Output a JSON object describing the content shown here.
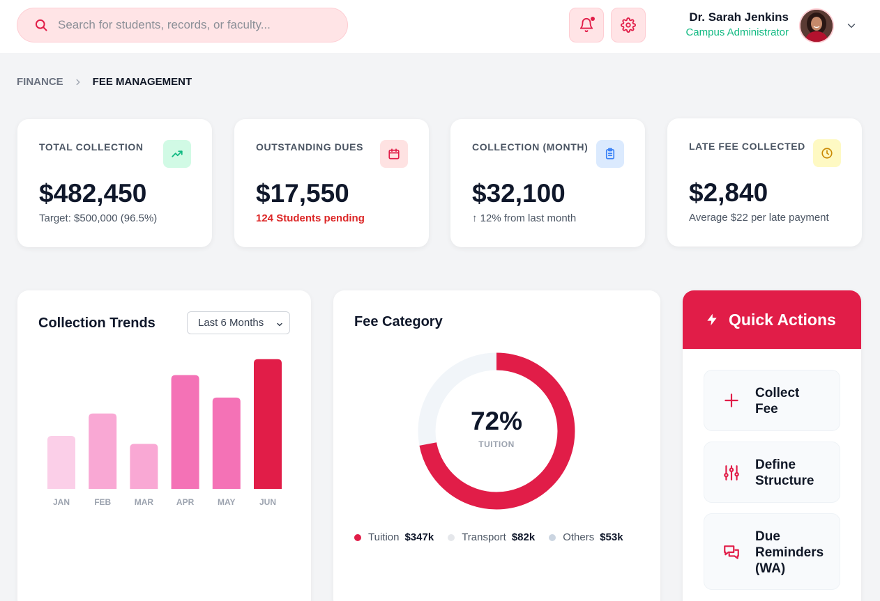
{
  "search": {
    "placeholder": "Search for students, records, or faculty..."
  },
  "user": {
    "name": "Dr. Sarah Jenkins",
    "role": "Campus Administrator"
  },
  "icons": {
    "search": "search-icon",
    "notifications": "bell-icon",
    "settings": "gear-icon",
    "menu": "chevron-down-icon"
  },
  "breadcrumb": {
    "parent": "FINANCE",
    "current": "FEE MANAGEMENT"
  },
  "stats": [
    {
      "label": "TOTAL COLLECTION",
      "value": "$482,450",
      "sub": "Target: $500,000 (96.5%)",
      "icon": "trending-up-icon",
      "color": "#10b981",
      "bg": "#d1fae5"
    },
    {
      "label": "OUTSTANDING DUES",
      "value": "$17,550",
      "sub": "124 Students pending",
      "icon": "calendar-icon",
      "color": "#e11d48",
      "bg": "#fee2e2"
    },
    {
      "label": "COLLECTION (MONTH)",
      "value": "$32,100",
      "sub": "↑ 12% from last month",
      "icon": "clipboard-icon",
      "color": "#3b82f6",
      "bg": "#dbeafe"
    },
    {
      "label": "LATE FEE COLLECTED",
      "value": "$2,840",
      "sub": "Average $22 per late payment",
      "icon": "clock-icon",
      "color": "#ca8a04",
      "bg": "#fef9c3"
    }
  ],
  "trends": {
    "title": "Collection Trends",
    "range": "Last 6 Months"
  },
  "chart_data": {
    "type": "bar",
    "categories": [
      "JAN",
      "FEB",
      "MAR",
      "APR",
      "MAY",
      "JUN"
    ],
    "values": [
      40,
      57,
      34,
      86,
      69,
      98
    ],
    "colors": [
      "#fbcfe8",
      "#f9a8d4",
      "#f9a8d4",
      "#f472b6",
      "#f472b6",
      "#e11d48"
    ],
    "ylim": [
      0,
      100
    ]
  },
  "category": {
    "title": "Fee Category",
    "percent": "72%",
    "center_label": "TUITION",
    "fraction": 0.72,
    "legend": [
      {
        "name": "Tuition",
        "value": "$347k",
        "color": "#e11d48"
      },
      {
        "name": "Transport",
        "value": "$82k",
        "color": "#e5e7eb"
      },
      {
        "name": "Others",
        "value": "$53k",
        "color": "#cbd5e1"
      }
    ]
  },
  "quick_actions": {
    "title": "Quick Actions",
    "items": [
      {
        "line1": "Collect",
        "line2": "Fee",
        "line3": "",
        "icon": "plus-icon"
      },
      {
        "line1": "Define",
        "line2": "Structure",
        "line3": "",
        "icon": "sliders-icon"
      },
      {
        "line1": "Due",
        "line2": "Reminders",
        "line3": "(WA)",
        "icon": "chat-icon"
      }
    ]
  }
}
